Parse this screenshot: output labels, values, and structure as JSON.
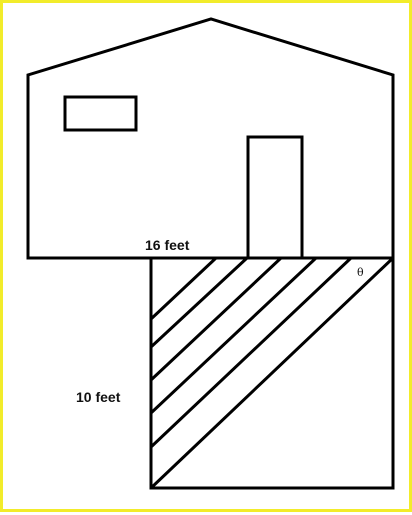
{
  "labels": {
    "width": "16 feet",
    "depth": "10 feet",
    "angle": "θ"
  },
  "colors": {
    "border": "#f2ec2a",
    "stroke": "#000000",
    "background": "#ffffff"
  }
}
